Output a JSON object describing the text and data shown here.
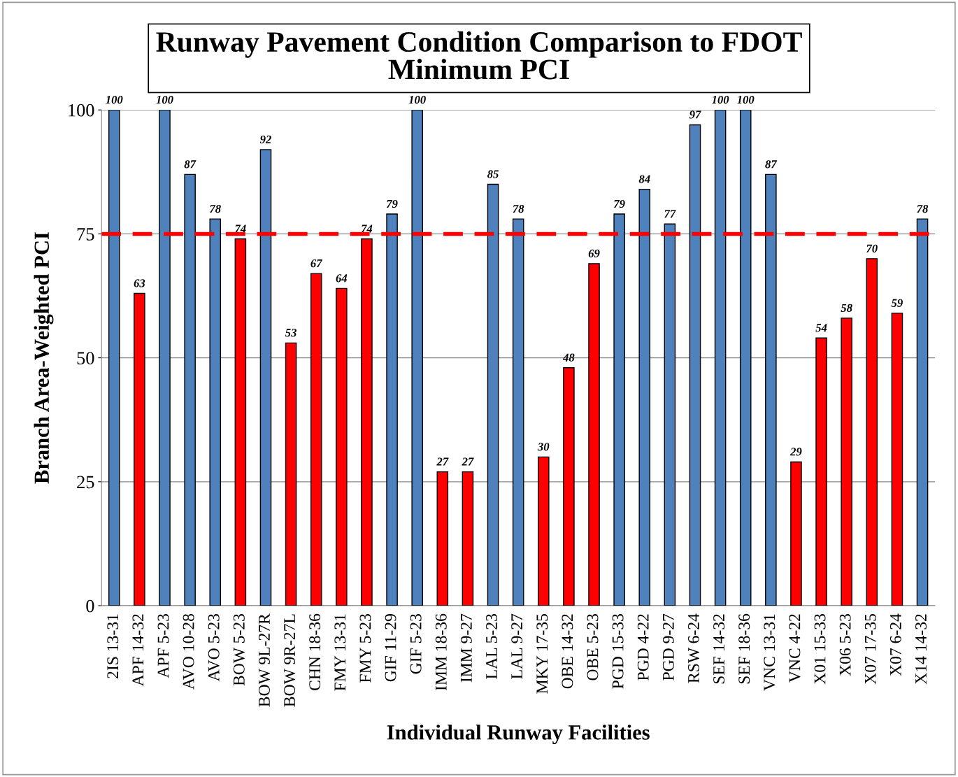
{
  "chart_data": {
    "type": "bar",
    "title": "Runway Pavement Condition Comparison to FDOT\nMinimum PCI",
    "xlabel": "Individual Runway Facilities",
    "ylabel": "Branch Area-Weighted PCI",
    "categories": [
      "2IS 13-31",
      "APF 14-32",
      "APF 5-23",
      "AVO 10-28",
      "AVO 5-23",
      "BOW 5-23",
      "BOW 9L-27R",
      "BOW 9R-27L",
      "CHN 18-36",
      "FMY 13-31",
      "FMY 5-23",
      "GIF 11-29",
      "GIF 5-23",
      "IMM 18-36",
      "IMM 9-27",
      "LAL 5-23",
      "LAL 9-27",
      "MKY 17-35",
      "OBE 14-32",
      "OBE 5-23",
      "PGD 15-33",
      "PGD 4-22",
      "PGD 9-27",
      "RSW 6-24",
      "SEF 14-32",
      "SEF 18-36",
      "VNC 13-31",
      "VNC 4-22",
      "X01 15-33",
      "X06 5-23",
      "X07 17-35",
      "X07 6-24",
      "X14 14-32"
    ],
    "values": [
      100,
      63,
      100,
      87,
      78,
      74,
      92,
      53,
      67,
      64,
      74,
      79,
      100,
      27,
      27,
      85,
      78,
      30,
      48,
      69,
      79,
      84,
      77,
      97,
      100,
      100,
      87,
      29,
      54,
      58,
      70,
      59,
      78
    ],
    "colors": [
      "#4f81bd",
      "#ff0000",
      "#4f81bd",
      "#4f81bd",
      "#4f81bd",
      "#ff0000",
      "#4f81bd",
      "#ff0000",
      "#ff0000",
      "#ff0000",
      "#ff0000",
      "#4f81bd",
      "#4f81bd",
      "#ff0000",
      "#ff0000",
      "#4f81bd",
      "#4f81bd",
      "#ff0000",
      "#ff0000",
      "#ff0000",
      "#4f81bd",
      "#4f81bd",
      "#4f81bd",
      "#4f81bd",
      "#4f81bd",
      "#4f81bd",
      "#4f81bd",
      "#ff0000",
      "#ff0000",
      "#ff0000",
      "#ff0000",
      "#ff0000",
      "#4f81bd"
    ],
    "data_labels": true,
    "ylim": [
      0,
      100
    ],
    "yticks": [
      0,
      25,
      50,
      75,
      100
    ],
    "grid": "y",
    "ref_lines": [
      {
        "axis": "y",
        "value": 75,
        "color": "#ff0000",
        "line_style": "dashed"
      }
    ]
  }
}
